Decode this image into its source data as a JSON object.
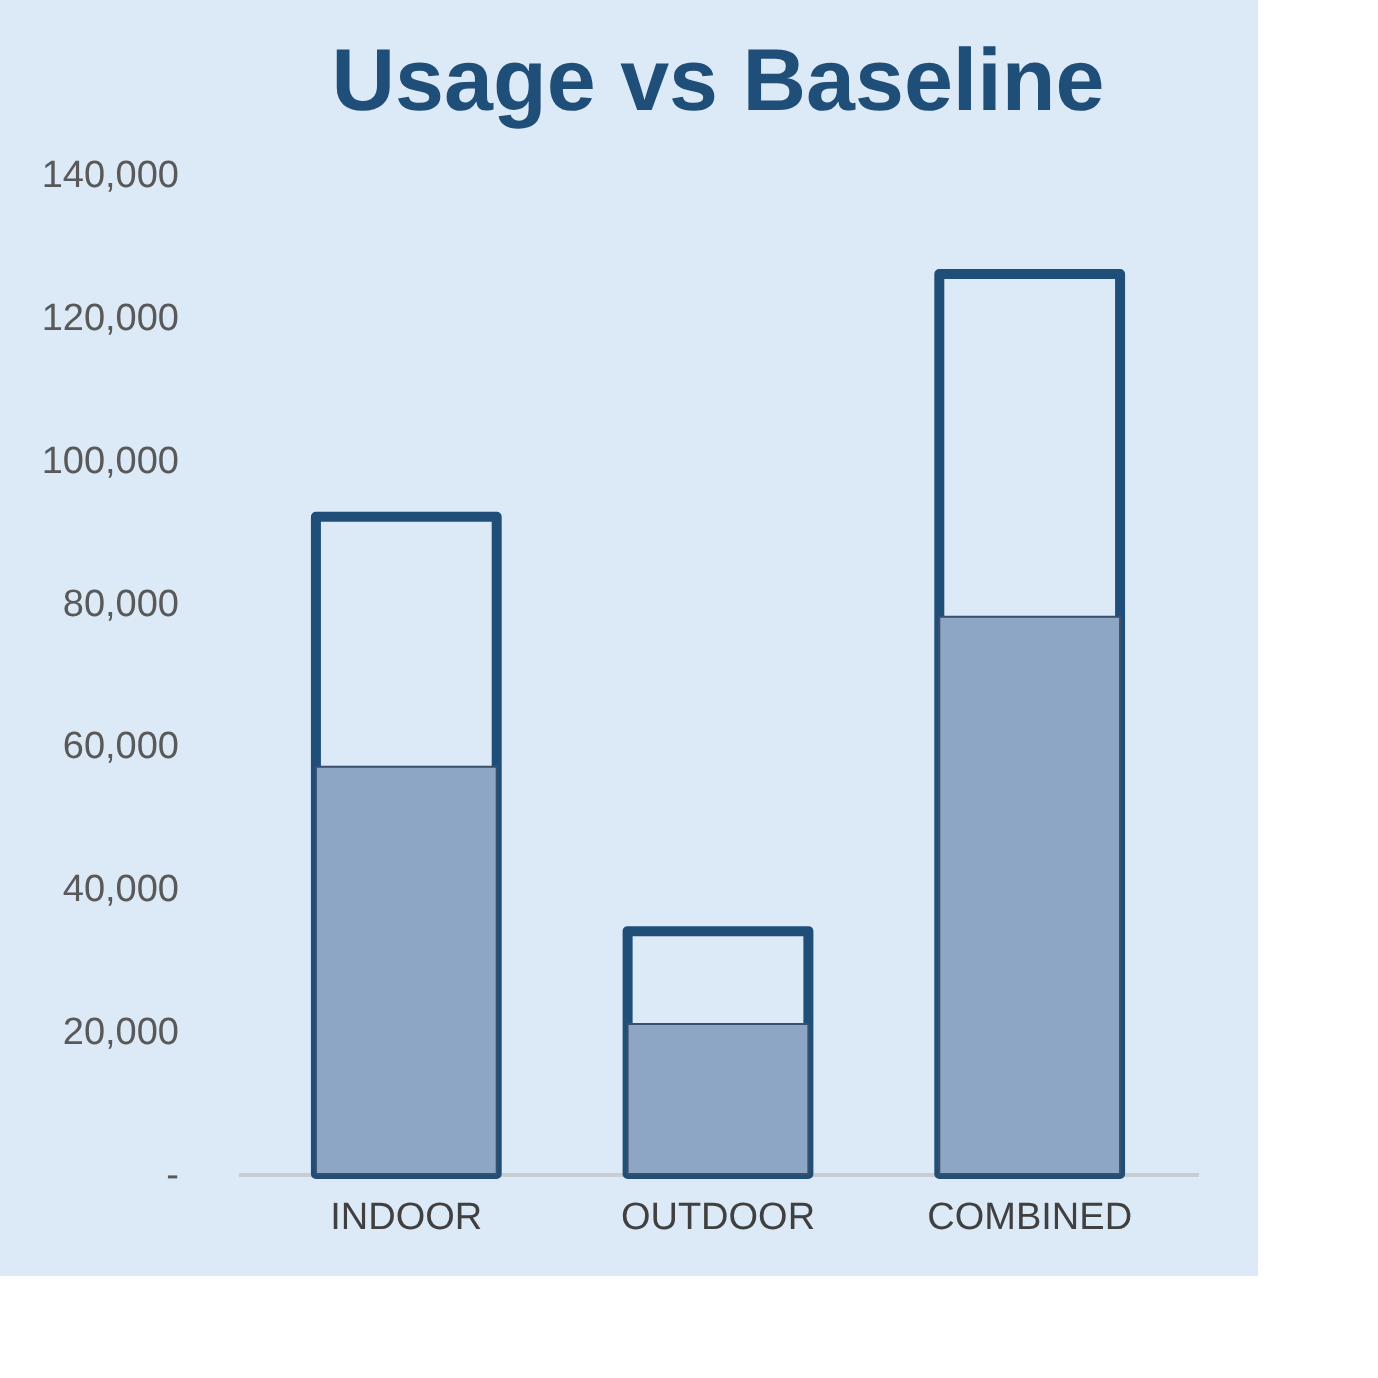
{
  "chart_data": {
    "type": "bar",
    "title": "Usage vs Baseline",
    "categories": [
      "INDOOR",
      "OUTDOOR",
      "COMBINED"
    ],
    "series": [
      {
        "color": "#1f4e79",
        "values": [
          92000,
          34000,
          126000
        ]
      },
      {
        "color": "#8ea6c6",
        "values": [
          57000,
          21000,
          78000
        ]
      }
    ],
    "ylim": [
      0,
      140000
    ],
    "yticks": [
      {
        "value": 0,
        "label": "-"
      },
      {
        "value": 20000,
        "label": "20,000"
      },
      {
        "value": 40000,
        "label": "40,000"
      },
      {
        "value": 60000,
        "label": "60,000"
      },
      {
        "value": 80000,
        "label": "80,000"
      },
      {
        "value": 100000,
        "label": "100,000"
      },
      {
        "value": 120000,
        "label": "120,000"
      },
      {
        "value": 140000,
        "label": "140,000"
      }
    ],
    "grid": false
  }
}
